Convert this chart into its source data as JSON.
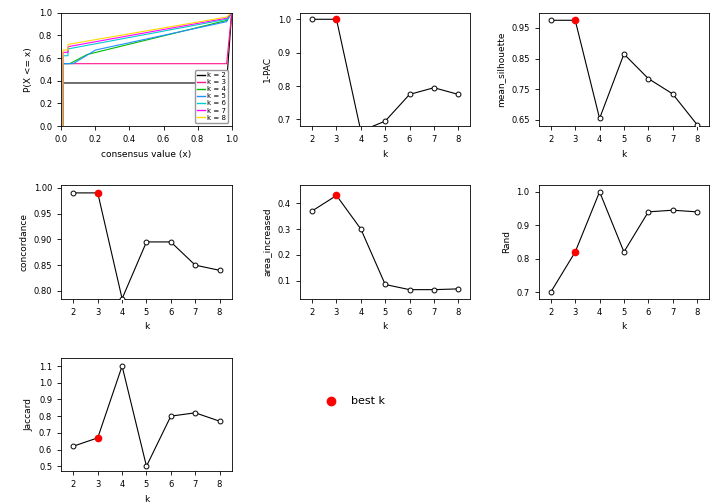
{
  "k_values": [
    2,
    3,
    4,
    5,
    6,
    7,
    8
  ],
  "pac_1minus": [
    1.0,
    1.0,
    0.665,
    0.695,
    0.775,
    0.795,
    0.775
  ],
  "mean_silhouette": [
    0.975,
    0.975,
    0.655,
    0.865,
    0.785,
    0.735,
    0.635
  ],
  "concordance": [
    0.99,
    0.99,
    0.785,
    0.895,
    0.895,
    0.85,
    0.84
  ],
  "area_increased": [
    0.37,
    0.43,
    0.3,
    0.085,
    0.065,
    0.065,
    0.068
  ],
  "irand": [
    0.7,
    0.82,
    1.0,
    0.82,
    0.94,
    0.945,
    0.94
  ],
  "jaccard": [
    0.62,
    0.67,
    1.1,
    0.5,
    0.8,
    0.82,
    0.77
  ],
  "best_k": 3,
  "ecdf_colors": [
    "#000000",
    "#ff1493",
    "#00bb00",
    "#1e90ff",
    "#00cccc",
    "#ff00ff",
    "#ffd700"
  ],
  "legend_labels": [
    "k = 2",
    "k = 3",
    "k = 4",
    "k = 5",
    "k = 6",
    "k = 7",
    "k = 8"
  ]
}
